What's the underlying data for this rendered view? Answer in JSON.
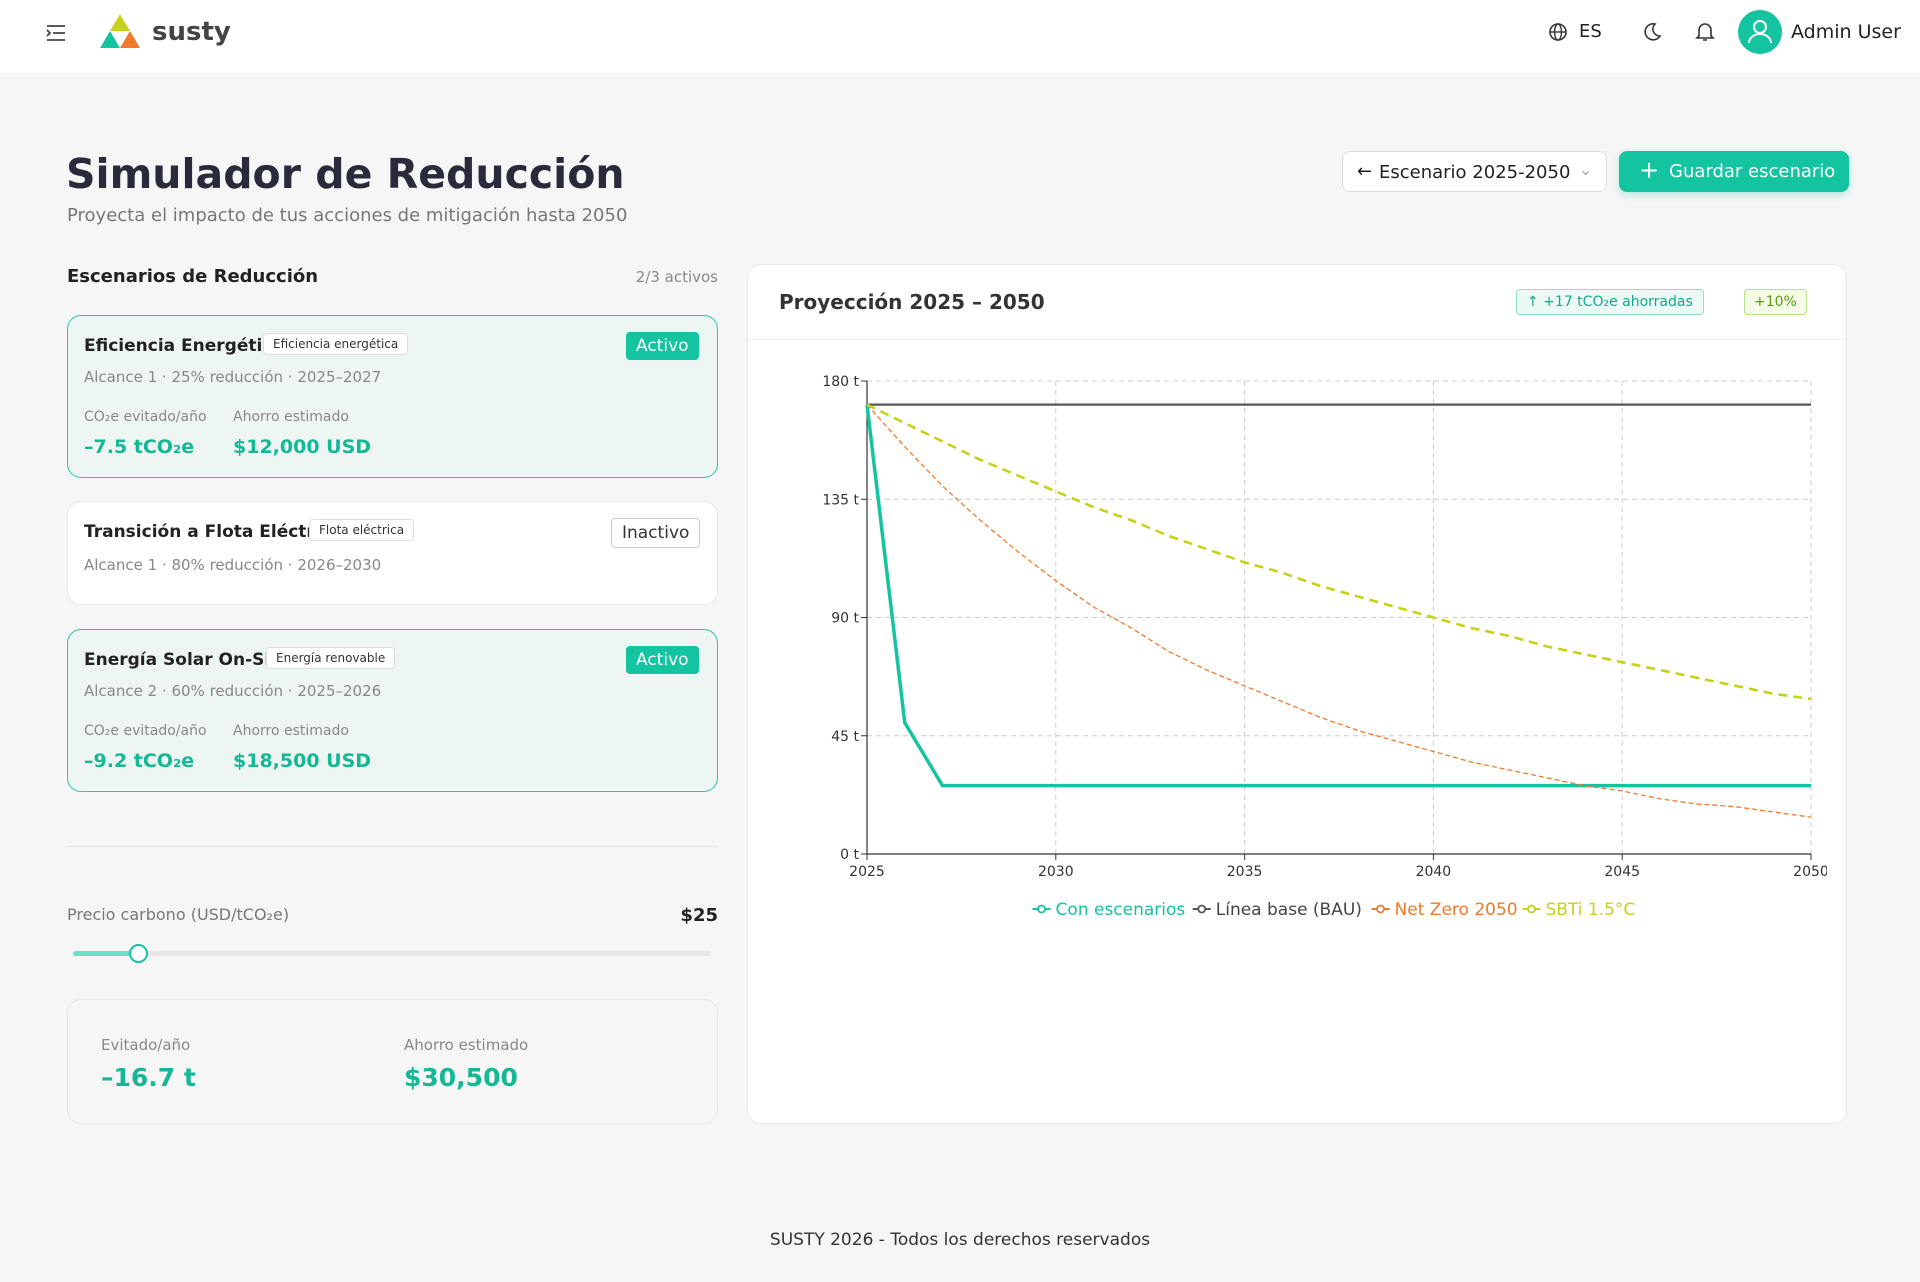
{
  "header": {
    "brand": "susty",
    "language": "ES",
    "user": "Admin User"
  },
  "page": {
    "title": "Simulador de Reducción",
    "subtitle": "Proyecta el impacto de tus acciones de mitigación hasta 2050",
    "scenario_select": "Escenario 2025-2050",
    "save_button": "Guardar escenario"
  },
  "scenarios": {
    "heading": "Escenarios de Reducción",
    "count": "2/3 activos",
    "items": [
      {
        "name": "Eficiencia Energética",
        "tag": "Eficiencia energética",
        "status": "Activo",
        "meta": "Alcance 1 · 25% reducción · 2025–2027",
        "metrics": [
          {
            "label": "CO₂e evitado/año",
            "value": "–7.5 tCO₂e"
          },
          {
            "label": "Ahorro estimado",
            "value": "$12,000 USD"
          }
        ]
      },
      {
        "name": "Transición a Flota Eléctrica",
        "tag": "Flota eléctrica",
        "status": "Inactivo",
        "meta": "Alcance 1 · 80% reducción · 2026–2030"
      },
      {
        "name": "Energía Solar On-Site",
        "tag": "Energía renovable",
        "status": "Activo",
        "meta": "Alcance 2 · 60% reducción · 2025–2026",
        "metrics": [
          {
            "label": "CO₂e evitado/año",
            "value": "–9.2 tCO₂e"
          },
          {
            "label": "Ahorro estimado",
            "value": "$18,500 USD"
          }
        ]
      }
    ]
  },
  "carbon_price": {
    "label": "Precio carbono (USD/tCO₂e)",
    "value": "$25"
  },
  "summary": [
    {
      "label": "Evitado/año",
      "value": "–16.7 t"
    },
    {
      "label": "Ahorro estimado",
      "value": "$30,500"
    }
  ],
  "chart_data": {
    "type": "line",
    "title": "Proyección 2025 – 2050",
    "badges": [
      "+17 tCO₂e ahorradas",
      "+10%"
    ],
    "x": [
      2025,
      2026,
      2027,
      2028,
      2029,
      2030,
      2031,
      2032,
      2033,
      2034,
      2035,
      2036,
      2037,
      2038,
      2039,
      2040,
      2041,
      2042,
      2043,
      2044,
      2045,
      2046,
      2047,
      2048,
      2049,
      2050
    ],
    "xlim": [
      2025,
      2050
    ],
    "xticks": [
      2025,
      2030,
      2035,
      2040,
      2045,
      2050
    ],
    "ylim": [
      0,
      180
    ],
    "yticks": [
      {
        "value": 0,
        "label": "0 t"
      },
      {
        "value": 45,
        "label": "45 t"
      },
      {
        "value": 90,
        "label": "90 t"
      },
      {
        "value": 135,
        "label": "135 t"
      },
      {
        "value": 180,
        "label": "180 t"
      }
    ],
    "grid": true,
    "series": [
      {
        "name": "Con escenarios",
        "color": "#14c3a0",
        "values": [
          171,
          50,
          26,
          26,
          26,
          26,
          26,
          26,
          26,
          26,
          26,
          26,
          26,
          26,
          26,
          26,
          26,
          26,
          26,
          26,
          26,
          26,
          26,
          26,
          26,
          26
        ]
      },
      {
        "name": "Línea base (BAU)",
        "color": "#555555",
        "values": [
          171,
          171,
          171,
          171,
          171,
          171,
          171,
          171,
          171,
          171,
          171,
          171,
          171,
          171,
          171,
          171,
          171,
          171,
          171,
          171,
          171,
          171,
          171,
          171,
          171,
          171
        ]
      },
      {
        "name": "Net Zero 2050",
        "color": "#f07a2a",
        "values": [
          171,
          155,
          140,
          127,
          115,
          104,
          94,
          86,
          77,
          70,
          64,
          58,
          52,
          47,
          43,
          39,
          35,
          32,
          29,
          26,
          24,
          21,
          19,
          18,
          16,
          14
        ]
      },
      {
        "name": "SBTi 1.5°C",
        "color": "#c5d21a",
        "values": [
          171,
          164,
          157,
          150,
          144,
          138,
          132,
          127,
          121,
          116,
          111,
          107,
          102,
          98,
          94,
          90,
          86,
          83,
          79,
          76,
          73,
          70,
          67,
          64,
          61,
          59
        ]
      }
    ]
  },
  "footer": "SUSTY 2026 - Todos los derechos reservados"
}
